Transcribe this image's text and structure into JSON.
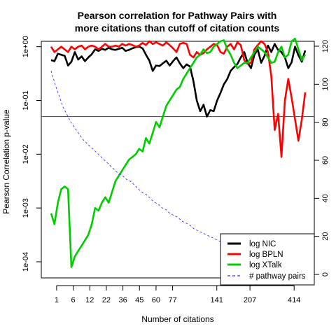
{
  "chart_data": {
    "type": "line",
    "title": [
      "Pearson correlation for Pathway Pairs with",
      "more citations than cutoff of citation counts"
    ],
    "xlabel": "Number of citations",
    "ylabel": "Pearson Correlation p-value",
    "x_tick_labels": [
      "1",
      "6",
      "12",
      "22",
      "36",
      "45",
      "60",
      "77",
      "141",
      "207",
      "414"
    ],
    "x_tick_positions": [
      1,
      4,
      7,
      10,
      13,
      16,
      19,
      22,
      30,
      36,
      44
    ],
    "left_axis": {
      "scale": "log",
      "ylim_log10": [
        -4.3,
        0.1
      ],
      "tick_labels": [
        "1e-04",
        "1e-03",
        "1e-02",
        "1e-01",
        "1e+00"
      ]
    },
    "right_axis": {
      "scale": "linear",
      "ylim": [
        0,
        120
      ],
      "tick_labels": [
        "0",
        "20",
        "40",
        "60",
        "80",
        "100",
        "120"
      ]
    },
    "reference_line": {
      "log10_p": -1.3,
      "label": "p = 0.05"
    },
    "series": [
      {
        "name": "log NIC",
        "color": "#000000",
        "axis": "left",
        "log10_values": [
          -0.25,
          -0.27,
          -0.13,
          -0.15,
          -0.17,
          -0.35,
          -0.28,
          -0.1,
          -0.24,
          -0.18,
          -0.27,
          -0.2,
          -0.14,
          -0.05,
          -0.08,
          -0.04,
          -0.06,
          -0.02,
          -0.05,
          -0.06,
          -0.04,
          -0.02,
          -0.08,
          -0.06,
          -0.03,
          -0.01,
          0.0,
          -0.03,
          -0.15,
          -0.26,
          -0.45,
          -0.35,
          -0.36,
          -0.31,
          -0.26,
          -0.35,
          -0.27,
          -0.2,
          -0.31,
          -0.4,
          -0.33,
          -0.37,
          -0.64,
          -1.0,
          -1.2,
          -1.08,
          -1.3,
          -1.18,
          -1.2,
          -1.0,
          -0.86,
          -0.7,
          -0.6,
          -0.45,
          -0.38,
          -0.32,
          -0.2,
          -0.1,
          -0.3,
          -0.4,
          -0.15,
          -0.05,
          -0.3,
          -0.17,
          0.02,
          -0.1,
          0.05,
          -0.06,
          -0.1,
          -0.2,
          -0.4,
          -0.29,
          0.0,
          -0.16,
          -0.28,
          -0.07
        ]
      },
      {
        "name": "log BPLN",
        "color": "#ff0000",
        "axis": "left",
        "log10_values": [
          0.0,
          -0.1,
          -0.05,
          0.0,
          -0.05,
          -0.1,
          0.0,
          -0.05,
          0.0,
          0.02,
          -0.05,
          0.0,
          0.02,
          0.0,
          -0.05,
          0.0,
          0.05,
          0.0,
          0.0,
          0.02,
          0.0,
          0.05,
          0.02,
          0.05,
          0.03,
          0.0,
          0.02,
          0.07,
          0.03,
          0.1,
          0.05,
          0.08,
          0.05,
          0.02,
          0.08,
          0.03,
          -0.03,
          -0.1,
          0.05,
          0.07,
          0.05,
          -0.15,
          -0.2,
          -0.1,
          -0.15,
          -0.12,
          -0.05,
          0.0,
          0.05,
          0.03,
          -0.1,
          -0.13,
          0.0,
          0.05,
          -0.05,
          0.08,
          0.03,
          -0.25,
          -0.32,
          -0.3,
          -0.05,
          0.03,
          0.1,
          0.05,
          -0.1,
          -0.55,
          -1.55,
          -1.25,
          -2.05,
          -1.0,
          -0.6,
          -0.95,
          -1.35,
          -1.75,
          -1.35,
          -0.85
        ]
      },
      {
        "name": "log XTalk",
        "color": "#00cc00",
        "axis": "left",
        "log10_values": [
          -3.1,
          -3.3,
          -2.9,
          -2.65,
          -2.6,
          -2.65,
          -4.1,
          -3.9,
          -3.8,
          -3.7,
          -3.6,
          -3.5,
          -3.3,
          -3.0,
          -3.05,
          -2.9,
          -2.8,
          -2.9,
          -2.7,
          -2.5,
          -2.4,
          -2.3,
          -2.2,
          -2.1,
          -2.05,
          -2.0,
          -1.9,
          -1.95,
          -1.7,
          -1.8,
          -1.6,
          -1.4,
          -1.5,
          -1.3,
          -1.1,
          -1.0,
          -0.9,
          -0.8,
          -0.75,
          -0.6,
          -0.5,
          -0.4,
          -0.3,
          -0.2,
          -0.15,
          -0.05,
          -0.12,
          -0.1,
          0.0,
          0.05,
          0.1,
          0.12,
          -0.05,
          -0.15,
          -0.3,
          -0.4,
          -0.35,
          -0.3,
          -0.3,
          -0.2,
          -0.1,
          0.0,
          -0.05,
          -0.1,
          -0.2,
          -0.3,
          -0.28,
          -0.1,
          0.0,
          -0.2,
          -0.15,
          0.1,
          0.15,
          -0.05,
          -0.25,
          -0.15
        ]
      },
      {
        "name": "# pathway pairs",
        "color": "#3333ff",
        "axis": "right",
        "dashed": true,
        "values": [
          107,
          100,
          94,
          88,
          84,
          80,
          77,
          74,
          71,
          69,
          67,
          65,
          63,
          61,
          59,
          57,
          55,
          53,
          52,
          50,
          49,
          47,
          45,
          43,
          42,
          40,
          38,
          37,
          35,
          34,
          32,
          31,
          30,
          28,
          27,
          26,
          24,
          23,
          22,
          21,
          20,
          19,
          18,
          17,
          16,
          15,
          14,
          13,
          12,
          11,
          10
        ]
      }
    ],
    "legend": {
      "placement": "bottom-right",
      "entries": [
        "log NIC",
        "log BPLN",
        "log XTalk",
        "# pathway pairs"
      ]
    },
    "grid": false
  }
}
